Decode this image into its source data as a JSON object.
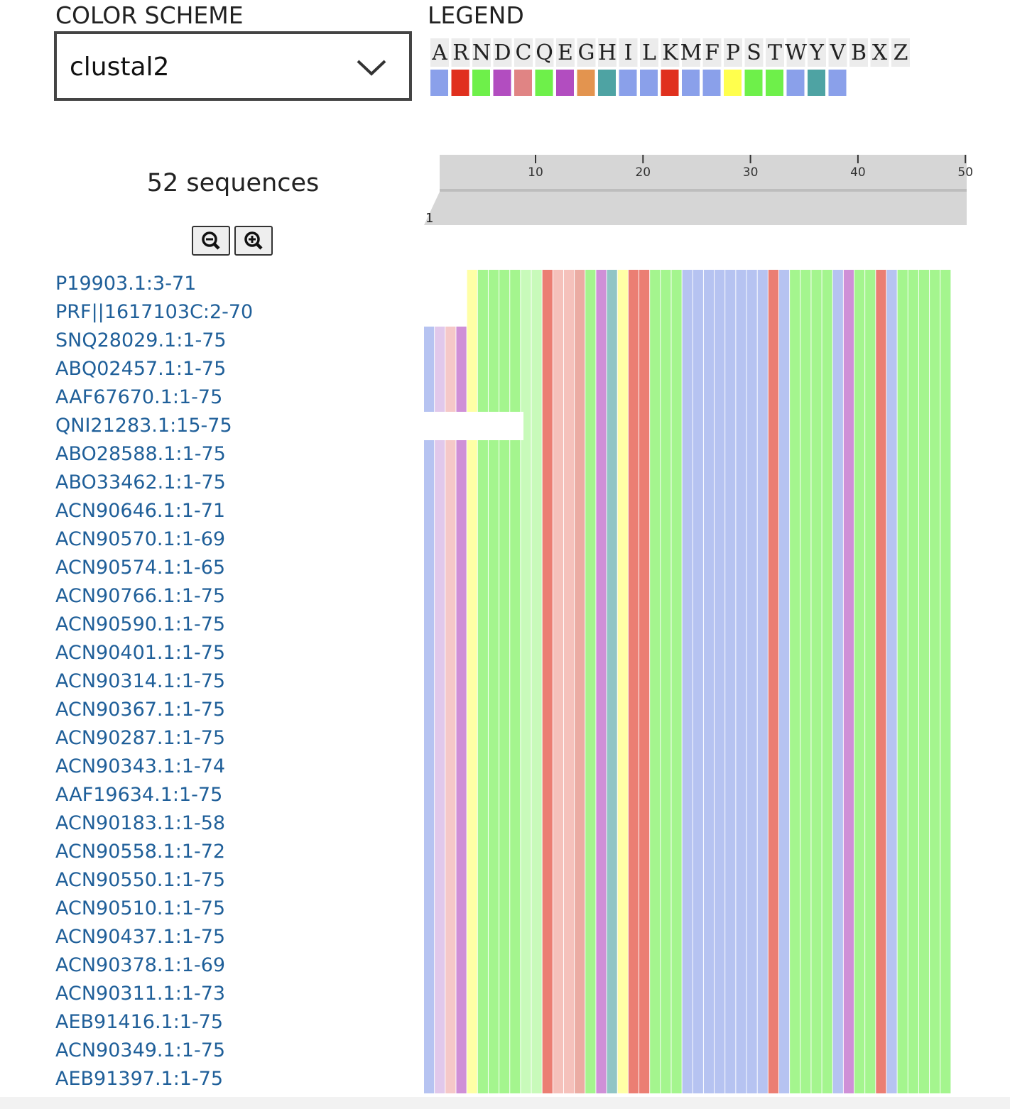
{
  "controls": {
    "color_scheme_label": "COLOR SCHEME",
    "color_scheme_value": "clustal2",
    "legend_title": "LEGEND"
  },
  "legend": {
    "letters": [
      "A",
      "R",
      "N",
      "D",
      "C",
      "Q",
      "E",
      "G",
      "H",
      "I",
      "L",
      "K",
      "M",
      "F",
      "P",
      "S",
      "T",
      "W",
      "Y",
      "V",
      "B",
      "X",
      "Z"
    ],
    "colors": [
      "#8aa0ea",
      "#e0301e",
      "#6ef04a",
      "#b24dc0",
      "#e08484",
      "#6ef04a",
      "#b24dc0",
      "#e3944f",
      "#4ea3a3",
      "#8aa0ea",
      "#8aa0ea",
      "#e0301e",
      "#8aa0ea",
      "#8aa0ea",
      "#ffff4d",
      "#6ef04a",
      "#6ef04a",
      "#8aa0ea",
      "#4ea3a3",
      "#8aa0ea"
    ]
  },
  "summary": {
    "sequence_count": "52 sequences"
  },
  "ruler": {
    "start": 1,
    "ticks": [
      10,
      20,
      30,
      40,
      50
    ]
  },
  "sequences": [
    "P19903.1:3-71",
    "PRF||1617103C:2-70",
    "SNQ28029.1:1-75",
    "ABQ02457.1:1-75",
    "AAF67670.1:1-75",
    "QNI21283.1:15-75",
    "ABO28588.1:1-75",
    "ABO33462.1:1-75",
    "ACN90646.1:1-71",
    "ACN90570.1:1-69",
    "ACN90574.1:1-65",
    "ACN90766.1:1-75",
    "ACN90590.1:1-75",
    "ACN90401.1:1-75",
    "ACN90314.1:1-75",
    "ACN90367.1:1-75",
    "ACN90287.1:1-75",
    "ACN90343.1:1-74",
    "AAF19634.1:1-75",
    "ACN90183.1:1-58",
    "ACN90558.1:1-72",
    "ACN90550.1:1-75",
    "ACN90510.1:1-75",
    "ACN90437.1:1-75",
    "ACN90378.1:1-69",
    "ACN90311.1:1-73",
    "AEB91416.1:1-75",
    "ACN90349.1:1-75",
    "AEB91397.1:1-75"
  ]
}
